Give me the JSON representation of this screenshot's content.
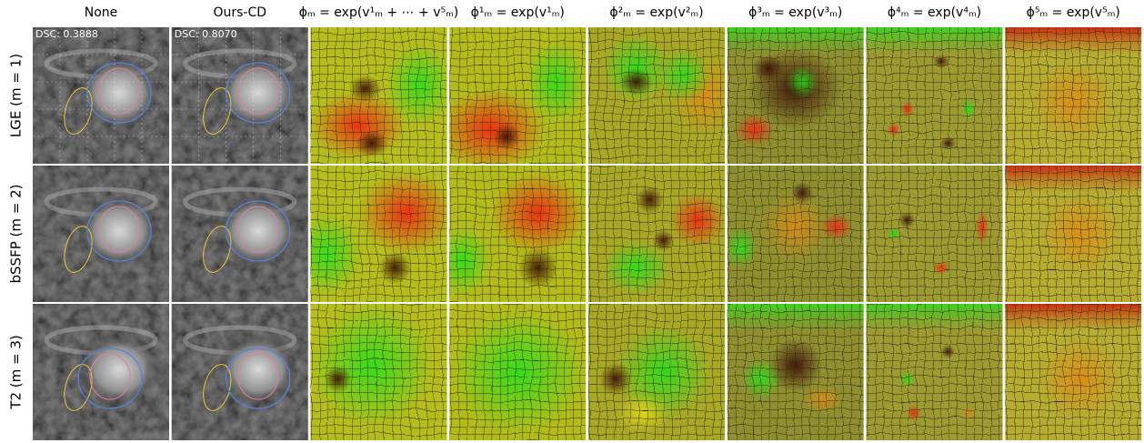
{
  "header": {
    "columns": [
      "None",
      "Ours-CD",
      "ϕₘ = exp(v¹ₘ + ⋯ + v⁵ₘ)",
      "ϕ¹ₘ = exp(v¹ₘ)",
      "ϕ²ₘ = exp(v²ₘ)",
      "ϕ³ₘ = exp(v³ₘ)",
      "ϕ⁴ₘ = exp(v⁴ₘ)",
      "ϕ⁵ₘ = exp(v⁵ₘ)"
    ]
  },
  "rows": [
    {
      "label": "LGE (m = 1)"
    },
    {
      "label": "bSSFP (m = 2)"
    },
    {
      "label": "T2 (m = 3)"
    }
  ],
  "dsc": [
    "DSC: 0.3888",
    "DSC: 0.8070"
  ]
}
